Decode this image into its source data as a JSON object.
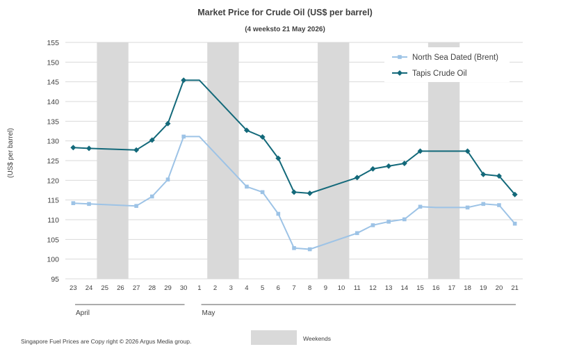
{
  "chart_data": {
    "type": "line",
    "title": "Market Price for Crude  Oil (US$ per barrel)",
    "subtitle": "(4 weeksto 21 May 2026)",
    "ylabel": "(US$ per barrel)",
    "xlabel": "",
    "ylim": [
      95,
      155
    ],
    "yticks": [
      95,
      100,
      105,
      110,
      115,
      120,
      125,
      130,
      135,
      140,
      145,
      150,
      155
    ],
    "grid": true,
    "legend_position": "top-right",
    "categories": [
      "23",
      "24",
      "25",
      "26",
      "27",
      "28",
      "29",
      "30",
      "1",
      "2",
      "3",
      "4",
      "5",
      "6",
      "7",
      "8",
      "9",
      "10",
      "11",
      "12",
      "13",
      "14",
      "15",
      "16",
      "17",
      "18",
      "19",
      "20",
      "21"
    ],
    "months": [
      {
        "label": "April",
        "start": "23",
        "end": "30"
      },
      {
        "label": "May",
        "start": "1",
        "end": "21"
      }
    ],
    "weekends": [
      [
        "25",
        "26"
      ],
      [
        "2",
        "3"
      ],
      [
        "9",
        "10"
      ],
      [
        "16",
        "17"
      ]
    ],
    "weekend_legend_label": "Weekends",
    "weekend_color": "#d9d9d9",
    "series": [
      {
        "name": "North Sea Dated (Brent)",
        "color": "#9dc3e6",
        "marker": "square",
        "values": [
          114.2,
          114.0,
          null,
          null,
          113.5,
          115.9,
          120.2,
          131.1,
          131.1,
          null,
          null,
          118.4,
          117.0,
          111.5,
          102.8,
          102.5,
          null,
          null,
          106.6,
          108.6,
          109.5,
          110.1,
          113.3,
          113.1,
          113.1,
          113.1,
          114.0,
          113.7,
          109.0
        ],
        "points_marked": [
          "23",
          "24",
          "27",
          "28",
          "29",
          "30",
          "4",
          "5",
          "6",
          "7",
          "8",
          "11",
          "12",
          "13",
          "14",
          "15",
          "18",
          "19",
          "20",
          "21"
        ]
      },
      {
        "name": "Tapis Crude Oil",
        "color": "#13697a",
        "marker": "diamond",
        "values": [
          128.3,
          128.1,
          null,
          null,
          127.7,
          130.2,
          134.4,
          145.4,
          145.4,
          null,
          null,
          132.7,
          131.0,
          125.6,
          117.0,
          116.7,
          null,
          null,
          120.7,
          122.9,
          123.6,
          124.3,
          127.4,
          127.4,
          127.4,
          127.4,
          121.5,
          121.1,
          116.4
        ],
        "points_marked": [
          "23",
          "24",
          "27",
          "28",
          "29",
          "30",
          "4",
          "5",
          "6",
          "7",
          "8",
          "11",
          "12",
          "13",
          "14",
          "15",
          "18",
          "19",
          "20",
          "21"
        ]
      }
    ]
  },
  "footer": {
    "copyright": "Singapore  Fuel Prices are  Copy right © 2026 Argus Media  group."
  }
}
